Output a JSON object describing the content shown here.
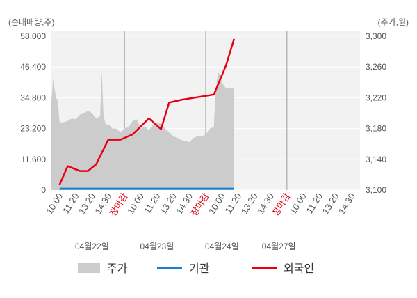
{
  "chart_data": {
    "type": "line",
    "left_unit": "(순매매량,주)",
    "right_unit": "(주가,원)",
    "left_ticks": [
      "58,000",
      "46,400",
      "34,800",
      "23,200",
      "11,600",
      "0"
    ],
    "right_ticks": [
      "3,300",
      "3,260",
      "3,220",
      "3,180",
      "3,140",
      "3,100"
    ],
    "ylim_left": [
      0,
      58000
    ],
    "ylim_right": [
      3100,
      3300
    ],
    "x_tick_labels": [
      "10:00",
      "11:20",
      "13:20",
      "14:30",
      "장마감",
      "10:00",
      "11:20",
      "13:20",
      "14:30",
      "장마감",
      "10:00",
      "11:20",
      "13:20",
      "14:30",
      "장마감",
      "10:00",
      "11:20",
      "13:20",
      "14:30"
    ],
    "market_close_label": "장마감",
    "dates": [
      "04월22일",
      "04월23일",
      "04월24일",
      "04월27일"
    ],
    "legend": [
      "주가",
      "기관",
      "외국인"
    ],
    "colors": {
      "price": "#cccccc",
      "institution": "#1a7fd1",
      "foreign": "#e60012"
    },
    "series": [
      {
        "name": "외국인",
        "axis": "left",
        "x": [
          0,
          0.5,
          1.25,
          1.75,
          2.25,
          3,
          3.75,
          4.5,
          5.5,
          6.25,
          6.75,
          7.5,
          9.5,
          10.25,
          10.75
        ],
        "values": [
          2000,
          9000,
          7200,
          7200,
          9700,
          19000,
          19000,
          21000,
          27000,
          23000,
          33000,
          34000,
          36000,
          47000,
          57000
        ]
      },
      {
        "name": "기관",
        "axis": "left",
        "x": [
          0,
          10.75
        ],
        "values": [
          500,
          500
        ]
      },
      {
        "name": "주가",
        "axis": "right",
        "x": [
          -0.5,
          -0.4,
          -0.3,
          -0.2,
          -0.1,
          0,
          0.25,
          0.5,
          0.75,
          1,
          1.25,
          1.5,
          1.75,
          2,
          2.25,
          2.5,
          2.6,
          2.7,
          2.8,
          2.9,
          3,
          3.25,
          3.5,
          3.75,
          4,
          4.25,
          4.5,
          4.75,
          5,
          5.25,
          5.5,
          5.75,
          6,
          6.25,
          6.5,
          6.75,
          7,
          7.25,
          7.5,
          7.75,
          8,
          8.25,
          8.5,
          8.75,
          9,
          9.25,
          9.5,
          9.6,
          9.75,
          9.9,
          10,
          10.25,
          10.5,
          10.75
        ],
        "values": [
          3215,
          3245,
          3230,
          3220,
          3215,
          3188,
          3188,
          3190,
          3193,
          3192,
          3198,
          3200,
          3203,
          3200,
          3193,
          3196,
          3255,
          3200,
          3188,
          3184,
          3186,
          3180,
          3180,
          3175,
          3180,
          3182,
          3190,
          3192,
          3180,
          3183,
          3178,
          3185,
          3188,
          3186,
          3180,
          3175,
          3170,
          3168,
          3165,
          3164,
          3162,
          3168,
          3170,
          3170,
          3172,
          3180,
          3182,
          3225,
          3253,
          3250,
          3240,
          3232,
          3233,
          3233
        ]
      }
    ]
  }
}
